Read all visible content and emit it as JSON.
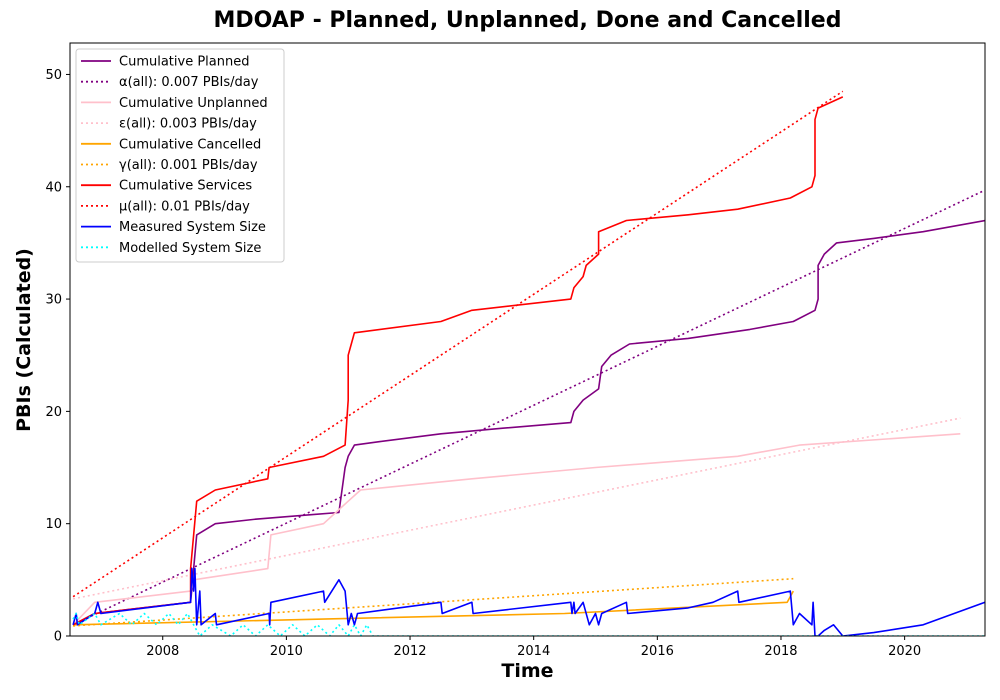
{
  "chart_data": {
    "type": "line",
    "title": "MDOAP - Planned, Unplanned, Done  and Cancelled",
    "xlabel": "Time",
    "ylabel": "PBIs (Calculated)",
    "xlim": [
      2006.5,
      2021.3
    ],
    "ylim": [
      0,
      52.8
    ],
    "xticks": [
      "2008",
      "2010",
      "2012",
      "2014",
      "2016",
      "2018",
      "2020"
    ],
    "yticks": [
      "0",
      "10",
      "20",
      "30",
      "40",
      "50"
    ],
    "legend_position": "top-left",
    "grid": false,
    "series": [
      {
        "name": "Cumulative Planned",
        "color": "#800080",
        "dash": "solid",
        "points": [
          [
            2006.55,
            1
          ],
          [
            2006.9,
            2
          ],
          [
            2008.45,
            3
          ],
          [
            2008.55,
            9
          ],
          [
            2008.85,
            10
          ],
          [
            2009.5,
            10.4
          ],
          [
            2010.4,
            10.8
          ],
          [
            2010.85,
            11
          ],
          [
            2010.95,
            15
          ],
          [
            2011.0,
            16
          ],
          [
            2011.1,
            17
          ],
          [
            2011.5,
            17.3
          ],
          [
            2012.5,
            18
          ],
          [
            2013.5,
            18.5
          ],
          [
            2014.6,
            19
          ],
          [
            2014.65,
            20
          ],
          [
            2014.8,
            21
          ],
          [
            2015.05,
            22
          ],
          [
            2015.1,
            24
          ],
          [
            2015.25,
            25
          ],
          [
            2015.55,
            26
          ],
          [
            2016.5,
            26.5
          ],
          [
            2017.5,
            27.3
          ],
          [
            2018.2,
            28
          ],
          [
            2018.55,
            29
          ],
          [
            2018.6,
            30
          ],
          [
            2018.6,
            33
          ],
          [
            2018.7,
            34
          ],
          [
            2018.9,
            35
          ],
          [
            2019.5,
            35.4
          ],
          [
            2020.3,
            36
          ],
          [
            2021.3,
            37
          ]
        ]
      },
      {
        "name": "α(all): 0.007 PBIs/day",
        "color": "#800080",
        "dash": "dotted",
        "points": [
          [
            2006.55,
            1
          ],
          [
            2021.3,
            39.7
          ]
        ]
      },
      {
        "name": "Cumulative Unplanned",
        "color": "#ffc0cb",
        "dash": "solid",
        "points": [
          [
            2006.55,
            1
          ],
          [
            2006.9,
            3
          ],
          [
            2008.45,
            4
          ],
          [
            2008.5,
            5
          ],
          [
            2009.7,
            6
          ],
          [
            2009.75,
            9
          ],
          [
            2010.6,
            10
          ],
          [
            2011.0,
            12
          ],
          [
            2011.2,
            13
          ],
          [
            2013.0,
            14
          ],
          [
            2015.0,
            15
          ],
          [
            2017.3,
            16
          ],
          [
            2018.3,
            17
          ],
          [
            2020.9,
            18
          ]
        ]
      },
      {
        "name": "ε(all): 0.003 PBIs/day",
        "color": "#ffc0cb",
        "dash": "dotted",
        "points": [
          [
            2006.55,
            3.3
          ],
          [
            2020.9,
            19.4
          ]
        ]
      },
      {
        "name": "Cumulative Cancelled",
        "color": "#ffa500",
        "dash": "solid",
        "points": [
          [
            2006.55,
            1
          ],
          [
            2010.5,
            1.5
          ],
          [
            2014.5,
            2
          ],
          [
            2018.1,
            3
          ],
          [
            2018.2,
            4
          ]
        ]
      },
      {
        "name": "γ(all): 0.001 PBIs/day",
        "color": "#ffa500",
        "dash": "dotted",
        "points": [
          [
            2006.55,
            0.9
          ],
          [
            2018.2,
            5.1
          ]
        ]
      },
      {
        "name": "Cumulative Services",
        "color": "#ff0000",
        "dash": "solid",
        "points": [
          [
            2006.55,
            1
          ],
          [
            2006.9,
            2
          ],
          [
            2008.45,
            3
          ],
          [
            2008.45,
            6
          ],
          [
            2008.55,
            12
          ],
          [
            2008.85,
            13
          ],
          [
            2009.7,
            14
          ],
          [
            2009.72,
            15
          ],
          [
            2010.6,
            16
          ],
          [
            2010.95,
            17
          ],
          [
            2011.0,
            21
          ],
          [
            2011.0,
            25
          ],
          [
            2011.05,
            26
          ],
          [
            2011.1,
            27
          ],
          [
            2012.5,
            28
          ],
          [
            2013.0,
            29
          ],
          [
            2014.6,
            30
          ],
          [
            2014.65,
            31
          ],
          [
            2014.8,
            32
          ],
          [
            2014.85,
            33
          ],
          [
            2015.05,
            34
          ],
          [
            2015.05,
            36
          ],
          [
            2015.5,
            37
          ],
          [
            2016.5,
            37.5
          ],
          [
            2017.3,
            38
          ],
          [
            2018.15,
            39
          ],
          [
            2018.5,
            40
          ],
          [
            2018.55,
            41
          ],
          [
            2018.55,
            46
          ],
          [
            2018.6,
            47
          ],
          [
            2019.0,
            48
          ]
        ]
      },
      {
        "name": "μ(all): 0.01 PBIs/day",
        "color": "#ff0000",
        "dash": "dotted",
        "points": [
          [
            2006.55,
            3.5
          ],
          [
            2019.0,
            48.5
          ]
        ]
      },
      {
        "name": "Measured System Size",
        "color": "#0000ff",
        "dash": "solid",
        "points": [
          [
            2006.55,
            1
          ],
          [
            2006.6,
            2
          ],
          [
            2006.62,
            1
          ],
          [
            2006.9,
            2
          ],
          [
            2006.95,
            3
          ],
          [
            2007.0,
            2
          ],
          [
            2008.45,
            3
          ],
          [
            2008.47,
            6
          ],
          [
            2008.5,
            4
          ],
          [
            2008.52,
            6
          ],
          [
            2008.55,
            1
          ],
          [
            2008.6,
            4
          ],
          [
            2008.62,
            1
          ],
          [
            2008.85,
            2
          ],
          [
            2008.87,
            1
          ],
          [
            2009.72,
            2
          ],
          [
            2009.73,
            1
          ],
          [
            2009.75,
            3
          ],
          [
            2010.6,
            4
          ],
          [
            2010.62,
            3
          ],
          [
            2010.85,
            5
          ],
          [
            2010.95,
            4
          ],
          [
            2011.0,
            1
          ],
          [
            2011.05,
            2
          ],
          [
            2011.1,
            1
          ],
          [
            2011.15,
            2
          ],
          [
            2012.5,
            3
          ],
          [
            2012.52,
            2
          ],
          [
            2013.0,
            3
          ],
          [
            2013.02,
            2
          ],
          [
            2014.6,
            3
          ],
          [
            2014.62,
            2
          ],
          [
            2014.65,
            3
          ],
          [
            2014.67,
            2
          ],
          [
            2014.8,
            3
          ],
          [
            2014.9,
            1
          ],
          [
            2015.0,
            2
          ],
          [
            2015.05,
            1
          ],
          [
            2015.1,
            2
          ],
          [
            2015.5,
            3
          ],
          [
            2015.52,
            2
          ],
          [
            2016.5,
            2.5
          ],
          [
            2016.9,
            3
          ],
          [
            2017.3,
            4
          ],
          [
            2017.32,
            3
          ],
          [
            2018.15,
            4
          ],
          [
            2018.2,
            1
          ],
          [
            2018.3,
            2
          ],
          [
            2018.5,
            1
          ],
          [
            2018.52,
            3
          ],
          [
            2018.55,
            0
          ],
          [
            2018.6,
            0
          ],
          [
            2018.7,
            0.5
          ],
          [
            2018.85,
            1
          ],
          [
            2019.0,
            0
          ],
          [
            2019.5,
            0.3
          ],
          [
            2020.3,
            1
          ],
          [
            2020.8,
            2
          ],
          [
            2021.3,
            3
          ]
        ]
      },
      {
        "name": "Modelled System Size",
        "color": "#00ffff",
        "dash": "dotted",
        "points": [
          [
            2006.55,
            1.5
          ],
          [
            2006.6,
            2
          ],
          [
            2006.65,
            1
          ],
          [
            2006.9,
            2
          ],
          [
            2007.0,
            1
          ],
          [
            2007.3,
            2
          ],
          [
            2007.5,
            1
          ],
          [
            2007.7,
            2
          ],
          [
            2007.9,
            1
          ],
          [
            2008.1,
            2
          ],
          [
            2008.25,
            1
          ],
          [
            2008.4,
            2
          ],
          [
            2008.5,
            1
          ],
          [
            2008.6,
            0
          ],
          [
            2008.8,
            1
          ],
          [
            2009.1,
            0
          ],
          [
            2009.3,
            1
          ],
          [
            2009.5,
            0
          ],
          [
            2009.7,
            1
          ],
          [
            2009.9,
            0
          ],
          [
            2010.1,
            1
          ],
          [
            2010.3,
            0
          ],
          [
            2010.5,
            1
          ],
          [
            2010.7,
            0
          ],
          [
            2010.85,
            1
          ],
          [
            2011.0,
            0
          ],
          [
            2011.1,
            1
          ],
          [
            2011.2,
            0
          ],
          [
            2011.3,
            1
          ],
          [
            2011.4,
            0
          ],
          [
            2021.3,
            0
          ]
        ]
      }
    ]
  }
}
